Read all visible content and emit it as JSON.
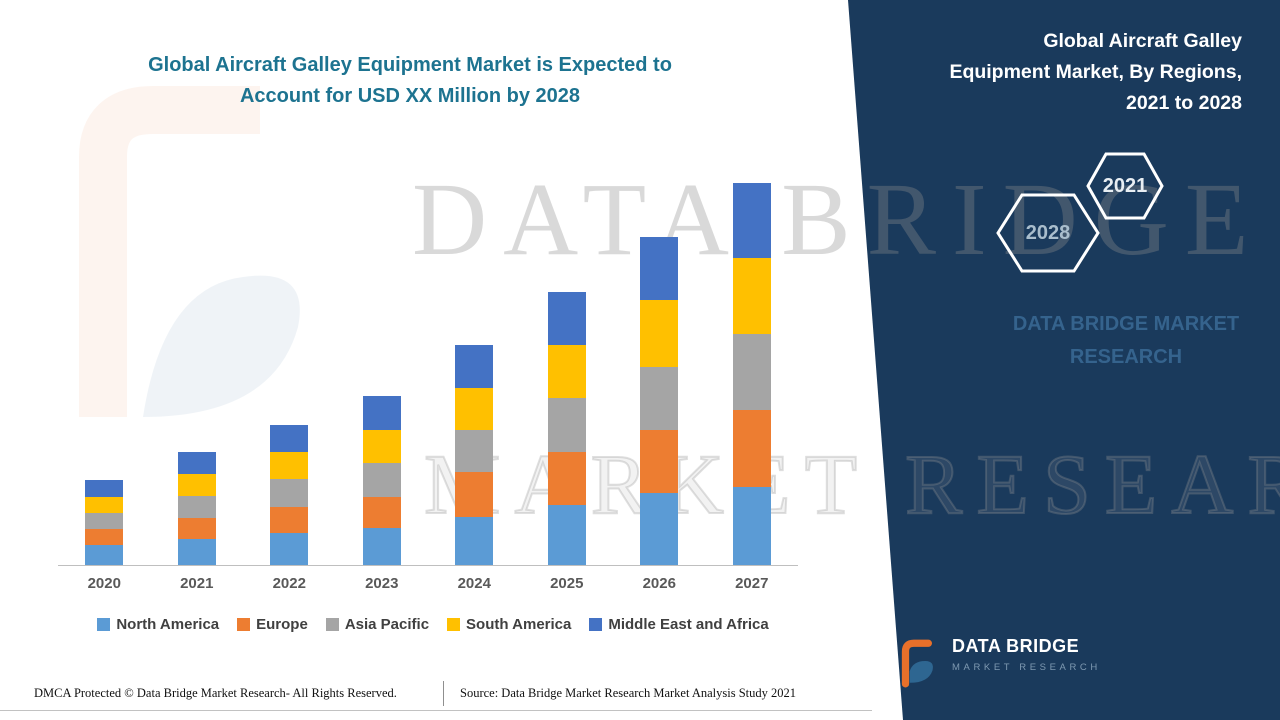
{
  "left": {
    "title_line1": "Global Aircraft Galley Equipment Market is Expected to",
    "title_line2": "Account for USD XX Million by 2028"
  },
  "chart_data": {
    "type": "bar",
    "stacked": true,
    "title": "Global Aircraft Galley Equipment Market is Expected to Account for USD XX Million by 2028",
    "xlabel": "",
    "ylabel": "",
    "ylim": [
      0,
      40
    ],
    "grid": false,
    "legend_position": "bottom",
    "categories": [
      "2020",
      "2021",
      "2022",
      "2023",
      "2024",
      "2025",
      "2026",
      "2027"
    ],
    "series": [
      {
        "name": "North America",
        "color": "#5B9BD5",
        "values": [
          2.0,
          2.6,
          3.2,
          3.7,
          4.8,
          6.0,
          7.2,
          7.8
        ]
      },
      {
        "name": "Europe",
        "color": "#ED7D31",
        "values": [
          1.6,
          2.1,
          2.6,
          3.1,
          4.5,
          5.3,
          6.3,
          7.7
        ]
      },
      {
        "name": "Asia Pacific",
        "color": "#A5A5A5",
        "values": [
          1.6,
          2.2,
          2.8,
          3.4,
          4.2,
          5.4,
          6.3,
          7.6
        ]
      },
      {
        "name": "South America",
        "color": "#FFC000",
        "values": [
          1.6,
          2.2,
          2.7,
          3.3,
          4.2,
          5.3,
          6.7,
          7.6
        ]
      },
      {
        "name": "Middle East and Africa",
        "color": "#4472C4",
        "values": [
          1.7,
          2.2,
          2.7,
          3.4,
          4.3,
          5.3,
          6.3,
          7.5
        ]
      }
    ]
  },
  "watermark": {
    "line1": "DATA BRIDGE",
    "line2": "MARKET RESEARCH"
  },
  "right_panel": {
    "title_lines": [
      "Global Aircraft Galley",
      "Equipment Market, By Regions,",
      "2021 to 2028"
    ],
    "hexagon_years": [
      "2028",
      "2021"
    ],
    "brand_lines": [
      "DATA BRIDGE MARKET",
      "RESEARCH"
    ],
    "logo_name": "DATA BRIDGE",
    "logo_tagline": "MARKET RESEARCH"
  },
  "footer": {
    "dmca": "DMCA Protected © Data Bridge Market Research- All Rights Reserved.",
    "source": "Source: Data Bridge Market Research Market Analysis Study 2021"
  },
  "colors": {
    "panel_navy": "#1A3A5C",
    "title_teal": "#1D7390",
    "axis_gray": "#BFBFBF"
  }
}
